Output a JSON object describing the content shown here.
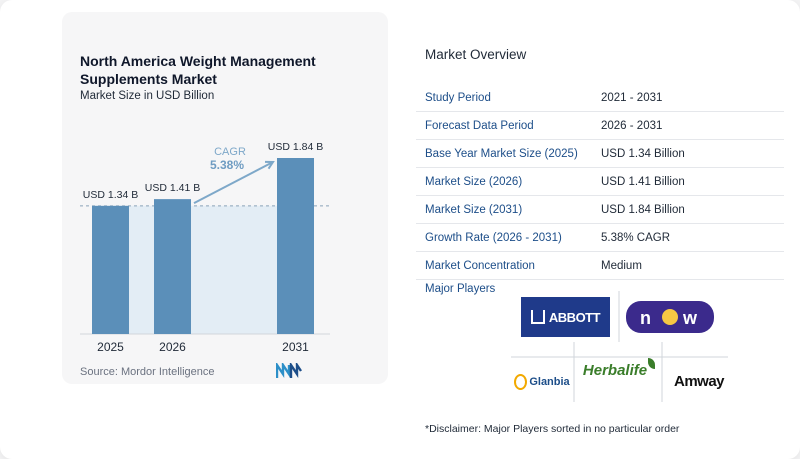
{
  "chart_data": {
    "type": "bar",
    "title": "North America Weight Management Supplements Market",
    "subtitle": "Market Size in USD Billion",
    "categories": [
      "2025",
      "2026",
      "2031"
    ],
    "values": [
      1.34,
      1.41,
      1.84
    ],
    "data_labels": [
      "USD 1.34 B",
      "USD 1.41 B",
      "USD 1.84 B"
    ],
    "cagr_label": "CAGR",
    "cagr_value": "5.38%",
    "ylim": [
      0,
      1.84
    ],
    "grid": false,
    "colors": {
      "bar": "#5b8fb9",
      "area": "#e3edf5",
      "arrow": "#7ea8c9"
    }
  },
  "source_text": "Source: Mordor Intelligence",
  "overview": {
    "title": "Market Overview",
    "rows": [
      {
        "label": "Study Period",
        "value": "2021 - 2031"
      },
      {
        "label": "Forecast Data Period",
        "value": "2026 - 2031"
      },
      {
        "label": "Base Year Market Size (2025)",
        "value": "USD 1.34 Billion"
      },
      {
        "label": "Market Size (2026)",
        "value": "USD 1.41 Billion"
      },
      {
        "label": "Market Size (2031)",
        "value": "USD 1.84 Billion"
      },
      {
        "label": "Growth Rate (2026 - 2031)",
        "value": "5.38% CAGR"
      },
      {
        "label": "Market Concentration",
        "value": "Medium"
      }
    ]
  },
  "players": {
    "title": "Major Players",
    "logos": [
      {
        "name": "ABBOTT",
        "icon": "abbott-logo"
      },
      {
        "name": "NOW",
        "icon": "now-foods-logo"
      },
      {
        "name": "Glanbia",
        "icon": "glanbia-logo"
      },
      {
        "name": "Herbalife",
        "icon": "herbalife-logo"
      },
      {
        "name": "Amway",
        "icon": "amway-logo"
      }
    ]
  },
  "disclaimer": "*Disclaimer: Major Players sorted in no particular order"
}
